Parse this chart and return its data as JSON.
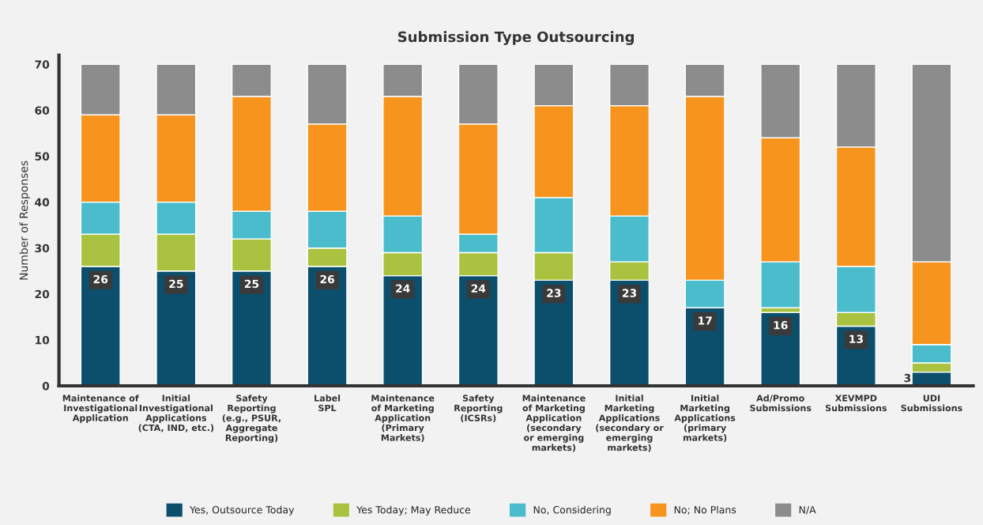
{
  "chart_data": {
    "type": "bar",
    "stacked": true,
    "title": "Submission Type Outsourcing",
    "ylabel": "Number of Responses",
    "categories": [
      "Maintenance of\nInvestigational\nApplication",
      "Initial\nInvestigational\nApplications\n(CTA, IND, etc.)",
      "Safety\nReporting\n(e.g., PSUR,\nAggregate\nReporting)",
      "Label\nSPL",
      "Maintenance\nof Marketing\nApplication\n(Primary\nMarkets)",
      "Safety\nReporting\n(ICSRs)",
      "Maintenance\nof Marketing\nApplication\n(secondary\nor emerging\nmarkets)",
      "Initial\nMarketing\nApplications\n(secondary or\nemerging\nmarkets)",
      "Initial\nMarketing\nApplications\n(primary\nmarkets)",
      "Ad/Promo\nSubmissions",
      "XEVMPD\nSubmissions",
      "UDI\nSubmissions"
    ],
    "series": [
      {
        "name": "Yes, Outsource Today",
        "color": "#0b4f6c",
        "values": [
          26,
          25,
          25,
          26,
          24,
          24,
          23,
          23,
          17,
          16,
          13,
          3
        ],
        "value_labels": [
          "26",
          "25",
          "25",
          "26",
          "24",
          "24",
          "23",
          "23",
          "17",
          "16",
          "13",
          "3"
        ]
      },
      {
        "name": "Yes Today; May Reduce",
        "color": "#a9c23f",
        "values": [
          7,
          8,
          7,
          4,
          5,
          5,
          6,
          4,
          0,
          1,
          3,
          2
        ]
      },
      {
        "name": "No, Considering",
        "color": "#4bbccc",
        "values": [
          7,
          7,
          6,
          8,
          8,
          4,
          12,
          10,
          6,
          10,
          10,
          4
        ]
      },
      {
        "name": "No; No Plans",
        "color": "#f7941d",
        "values": [
          19,
          19,
          25,
          19,
          26,
          24,
          20,
          24,
          40,
          27,
          26,
          18
        ]
      },
      {
        "name": "N/A",
        "color": "#8c8c8c",
        "values": [
          11,
          11,
          7,
          13,
          7,
          13,
          9,
          9,
          7,
          16,
          18,
          43
        ]
      }
    ],
    "ylim": [
      0,
      72
    ],
    "yticks": [
      0,
      10,
      20,
      30,
      40,
      50,
      60,
      70
    ],
    "grid": false,
    "legend": "bottom"
  }
}
